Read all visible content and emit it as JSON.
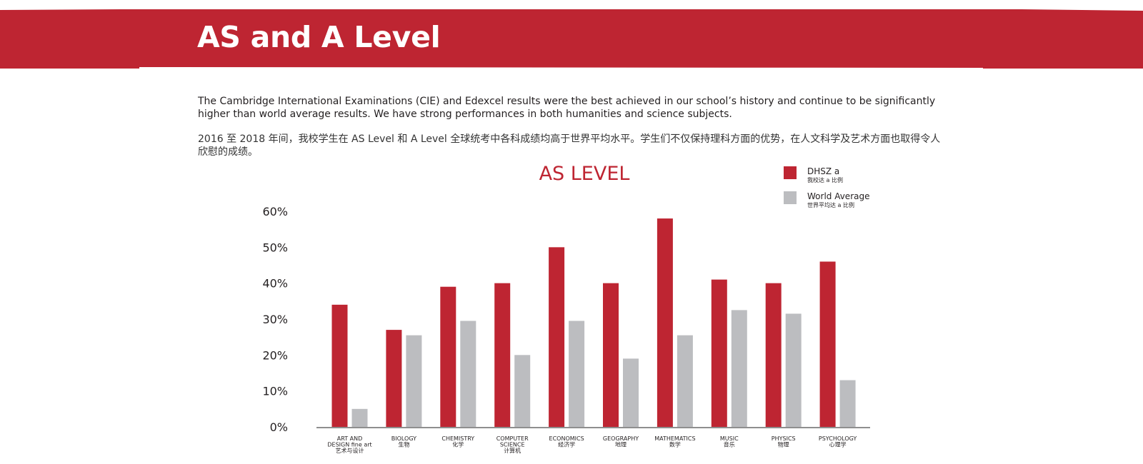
{
  "header": {
    "title": "AS and A Level"
  },
  "intro": {
    "english": "The Cambridge International Examinations (CIE) and Edexcel results were the best achieved in our school’s history and continue to be significantly higher than world average results. We have strong performances in both humanities and science subjects.",
    "chinese": "2016 至 2018 年间，我校学生在 AS Level 和 A Level 全球统考中各科成绩均高于世界平均水平。学生们不仅保持理科方面的优势，在人文科学及艺术方面也取得令人欣慰的成绩。"
  },
  "colors": {
    "brand": "#be2532",
    "dhsz": "#be2532",
    "world": "#bcbdc0",
    "axis": "#8f8f8f"
  },
  "chart_data": {
    "type": "bar",
    "title": "AS LEVEL",
    "xlabel": "",
    "ylabel": "",
    "ylim": [
      0,
      60
    ],
    "yticks": [
      "0%",
      "10%",
      "20%",
      "30%",
      "40%",
      "50%",
      "60%"
    ],
    "grid": false,
    "legend_position": "top-right",
    "categories": [
      [
        "ART AND",
        "DESIGN fine art",
        "艺术与设计"
      ],
      [
        "BIOLOGY",
        "生物"
      ],
      [
        "CHEMISTRY",
        "化学"
      ],
      [
        "COMPUTER",
        "SCIENCE",
        "计算机"
      ],
      [
        "ECONOMICS",
        "经济学"
      ],
      [
        "GEOGRAPHY",
        "地理"
      ],
      [
        "MATHEMATICS",
        "数学"
      ],
      [
        "MUSIC",
        "音乐"
      ],
      [
        "PHYSICS",
        "物理"
      ],
      [
        "PSYCHOLOGY",
        "心理学"
      ]
    ],
    "series": [
      {
        "name": "DHSZ a",
        "subname": "我校达 a 比例",
        "color": "#be2532",
        "values": [
          34,
          27,
          39,
          40,
          50,
          40,
          58,
          41,
          40,
          46
        ]
      },
      {
        "name": "World Average",
        "subname": "世界平均达 a 比例",
        "color": "#bcbdc0",
        "values": [
          5,
          25.5,
          29.5,
          20,
          29.5,
          19,
          25.5,
          32.5,
          31.5,
          13
        ]
      }
    ]
  }
}
